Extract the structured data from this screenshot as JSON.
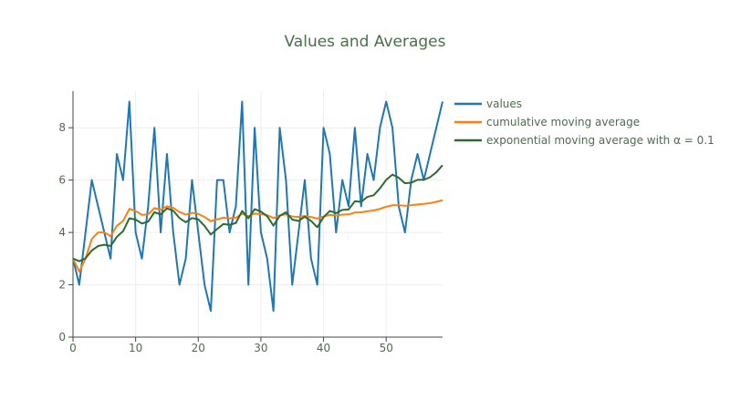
{
  "chart_data": {
    "type": "line",
    "title": "Values and Averages",
    "xlabel": "",
    "ylabel": "",
    "xlim": [
      0,
      59
    ],
    "ylim": [
      0,
      9.4
    ],
    "x_ticks": [
      "0",
      "10",
      "20",
      "30",
      "40",
      "50"
    ],
    "y_ticks": [
      "0",
      "2",
      "4",
      "6",
      "8"
    ],
    "grid": true,
    "legend_position": "top-right",
    "x": [
      0,
      1,
      2,
      3,
      4,
      5,
      6,
      7,
      8,
      9,
      10,
      11,
      12,
      13,
      14,
      15,
      16,
      17,
      18,
      19,
      20,
      21,
      22,
      23,
      24,
      25,
      26,
      27,
      28,
      29,
      30,
      31,
      32,
      33,
      34,
      35,
      36,
      37,
      38,
      39,
      40,
      41,
      42,
      43,
      44,
      45,
      46,
      47,
      48,
      49,
      50,
      51,
      52,
      53,
      54,
      55,
      56,
      57,
      58,
      59
    ],
    "series": [
      {
        "name": "values",
        "color": "#1f77b4",
        "values": [
          3,
          2,
          4,
          6,
          5,
          4,
          3,
          7,
          6,
          9,
          4,
          3,
          5,
          8,
          4,
          7,
          4,
          2,
          3,
          6,
          4,
          2,
          1,
          6,
          6,
          4,
          5,
          9,
          2,
          8,
          4,
          3,
          1,
          8,
          6,
          2,
          4,
          6,
          3,
          2,
          8,
          7,
          4,
          6,
          5,
          8,
          5,
          7,
          6,
          8,
          9,
          8,
          5,
          4,
          6,
          7,
          6,
          7,
          8,
          9
        ]
      },
      {
        "name": "cumulative moving average",
        "color": "#ff7f0e",
        "values": [
          3,
          2.5,
          3,
          3.75,
          4,
          4,
          3.86,
          4.25,
          4.44,
          4.9,
          4.82,
          4.67,
          4.69,
          4.93,
          4.87,
          5,
          4.94,
          4.78,
          4.68,
          4.75,
          4.71,
          4.59,
          4.43,
          4.5,
          4.56,
          4.54,
          4.56,
          4.71,
          4.62,
          4.72,
          4.7,
          4.66,
          4.55,
          4.65,
          4.69,
          4.61,
          4.59,
          4.63,
          4.59,
          4.53,
          4.61,
          4.67,
          4.65,
          4.68,
          4.69,
          4.76,
          4.77,
          4.81,
          4.84,
          4.9,
          4.98,
          5.04,
          5.04,
          5.02,
          5.04,
          5.07,
          5.09,
          5.12,
          5.17,
          5.23
        ]
      },
      {
        "name": "exponential moving average with α = 0.1",
        "color": "#2e6b2e",
        "values": [
          3,
          2.9,
          3.01,
          3.31,
          3.48,
          3.53,
          3.48,
          3.83,
          4.05,
          4.54,
          4.49,
          4.34,
          4.41,
          4.77,
          4.69,
          4.92,
          4.83,
          4.55,
          4.39,
          4.55,
          4.5,
          4.25,
          3.92,
          4.13,
          4.32,
          4.29,
          4.36,
          4.82,
          4.54,
          4.89,
          4.8,
          4.62,
          4.26,
          4.63,
          4.77,
          4.49,
          4.44,
          4.6,
          4.44,
          4.2,
          4.58,
          4.82,
          4.74,
          4.86,
          4.88,
          5.19,
          5.17,
          5.36,
          5.42,
          5.68,
          6.01,
          6.21,
          6.09,
          5.88,
          5.9,
          6.01,
          6.01,
          6.11,
          6.3,
          6.57
        ]
      }
    ]
  }
}
